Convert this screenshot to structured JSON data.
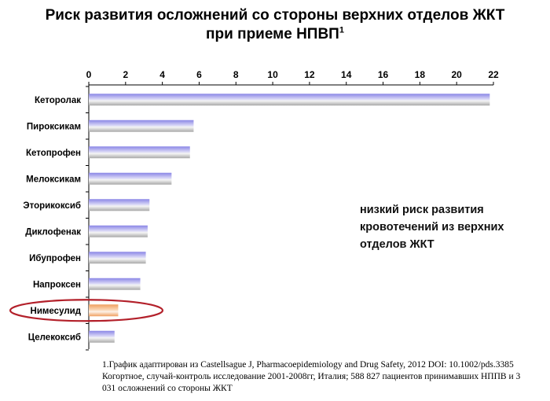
{
  "title": {
    "line1": "Риск развития осложнений со стороны верхних отделов ЖКТ",
    "line2": "при приеме НПВП",
    "sup": "1"
  },
  "chart_data": {
    "type": "bar",
    "orientation": "horizontal",
    "categories": [
      "Кеторолак",
      "Пироксикам",
      "Кетопрофен",
      "Мелоксикам",
      "Эторикоксиб",
      "Диклофенак",
      "Ибупрофен",
      "Напроксен",
      "Нимесулид",
      "Целекоксиб"
    ],
    "values": [
      21.8,
      5.7,
      5.5,
      4.5,
      3.3,
      3.2,
      3.1,
      2.8,
      1.6,
      1.4
    ],
    "xlim": [
      0,
      22
    ],
    "xticks": [
      0,
      2,
      4,
      6,
      8,
      10,
      12,
      14,
      16,
      18,
      20,
      22
    ],
    "xaxis_position": "top",
    "grid": false,
    "highlighted_category": "Нимесулид",
    "colors": {
      "default_bar": "#8a86e6",
      "highlight_bar": "#f0a060",
      "highlight_ring": "#b3202a"
    }
  },
  "note": {
    "line1": "низкий риск развития",
    "line2": "кровотечений из верхних",
    "line3": "отделов ЖКТ"
  },
  "footnote": {
    "line1": "1.График адаптирован из Castellsague J, Pharmacoepidemiology and Drug Safety, 2012 DOI: 10.1002/pds.3385",
    "line2": "Когортное, случай-контроль исследование 2001-2008гг, Италия; 588 827 пациентов принимавших НППВ и 3",
    "line3": "031 осложнений со стороны ЖКТ"
  }
}
